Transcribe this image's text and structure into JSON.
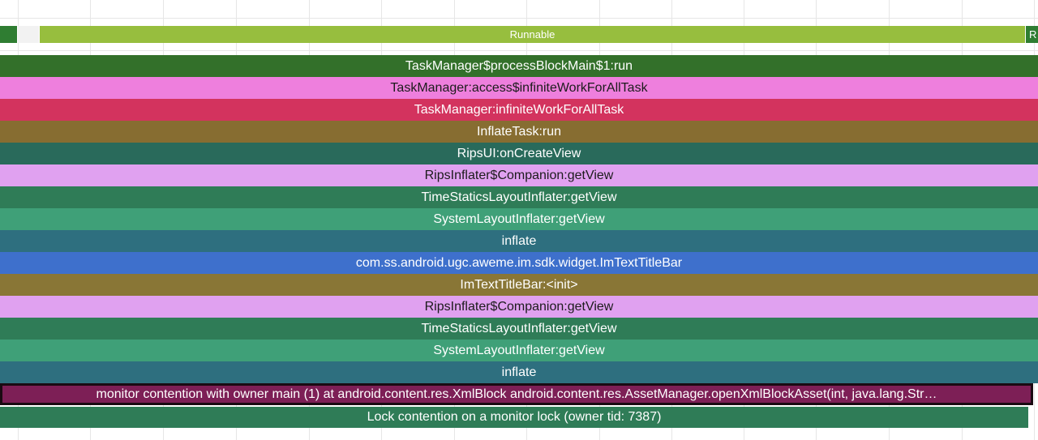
{
  "states": {
    "runnable_label": "Runnable",
    "cut_label": "R"
  },
  "slices": [
    {
      "label": "TaskManager$processBlockMain$1:run",
      "color": "#33702a"
    },
    {
      "label": "TaskManager:access$infiniteWorkForAllTask",
      "color": "#ee7fdd"
    },
    {
      "label": "TaskManager:infiniteWorkForAllTask",
      "color": "#d3335e"
    },
    {
      "label": "InflateTask:run",
      "color": "#876d31"
    },
    {
      "label": "RipsUI:onCreateView",
      "color": "#296a5b"
    },
    {
      "label": "RipsInflater$Companion:getView",
      "color": "#e0a1f0"
    },
    {
      "label": "TimeStaticsLayoutInflater:getView",
      "color": "#2f7c57"
    },
    {
      "label": "SystemLayoutInflater:getView",
      "color": "#3fa078"
    },
    {
      "label": "inflate",
      "color": "#2e6f7f"
    },
    {
      "label": "com.ss.android.ugc.aweme.im.sdk.widget.ImTextTitleBar",
      "color": "#3e70cc"
    },
    {
      "label": "ImTextTitleBar:<init>",
      "color": "#897636"
    },
    {
      "label": "RipsInflater$Companion:getView",
      "color": "#e0a1f0"
    },
    {
      "label": "TimeStaticsLayoutInflater:getView",
      "color": "#2f7c57"
    },
    {
      "label": "SystemLayoutInflater:getView",
      "color": "#3fa078"
    },
    {
      "label": "inflate",
      "color": "#2e6f7f"
    },
    {
      "label": "monitor contention with owner main (1) at android.content.res.XmlBlock android.content.res.AssetManager.openXmlBlockAsset(int, java.lang.Str…",
      "color": "#7d1f56"
    },
    {
      "label": "Lock contention on a monitor lock (owner tid: 7387)",
      "color": "#2f7c57"
    }
  ]
}
